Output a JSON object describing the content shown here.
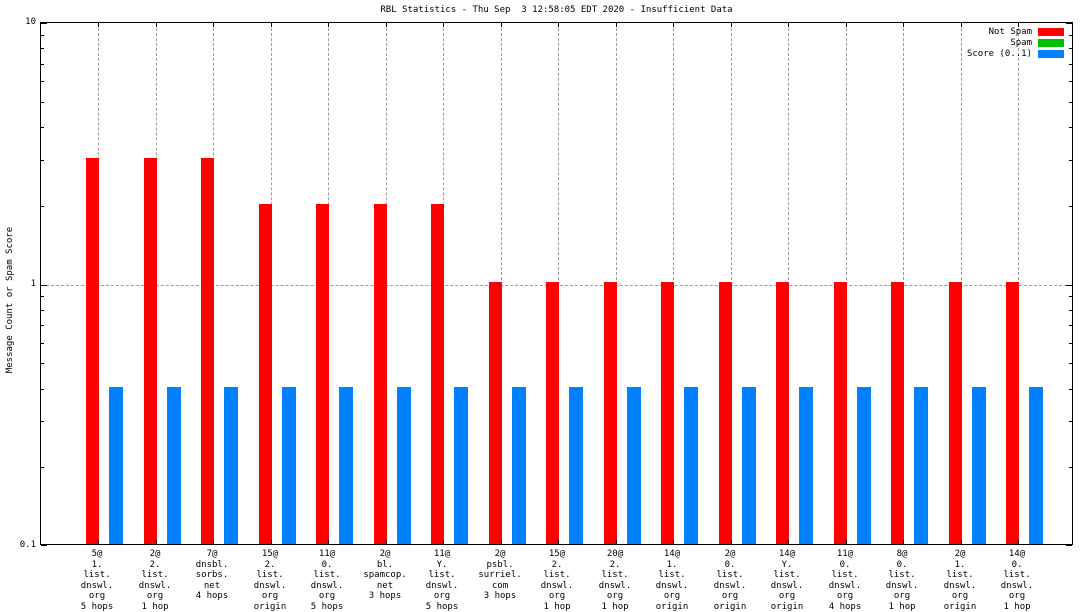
{
  "chart_data": {
    "type": "bar",
    "title": "RBL Statistics - Thu Sep  3 12:58:05 EDT 2020 - Insufficient Data",
    "ylabel": "Message Count or Spam Score",
    "yscale": "log",
    "ylim": [
      0.1,
      10
    ],
    "ytick_major": [
      0.1,
      1,
      10
    ],
    "ytick_major_labels": [
      "0.1",
      "1",
      "10"
    ],
    "grid_y_values": [
      1
    ],
    "grid_x": "at-category-ticks",
    "legend_position": "top-right-inside",
    "grid_color": "#9a9a9a",
    "categories": [
      [
        "5@",
        "1.",
        "list.",
        "dnswl.",
        "org",
        "5 hops"
      ],
      [
        "2@",
        "2.",
        "list.",
        "dnswl.",
        "org",
        "1 hop"
      ],
      [
        "7@",
        "dnsbl.",
        "sorbs.",
        "net",
        "4 hops"
      ],
      [
        "15@",
        "2.",
        "list.",
        "dnswl.",
        "org",
        "origin"
      ],
      [
        "11@",
        "0.",
        "list.",
        "dnswl.",
        "org",
        "5 hops"
      ],
      [
        "2@",
        "bl.",
        "spamcop.",
        "net",
        "3 hops"
      ],
      [
        "11@",
        "Y.",
        "list.",
        "dnswl.",
        "org",
        "5 hops"
      ],
      [
        "2@",
        "psbl.",
        "surriel.",
        "com",
        "3 hops"
      ],
      [
        "15@",
        "2.",
        "list.",
        "dnswl.",
        "org",
        "1 hop"
      ],
      [
        "20@",
        "2.",
        "list.",
        "dnswl.",
        "org",
        "1 hop"
      ],
      [
        "14@",
        "1.",
        "list.",
        "dnswl.",
        "org",
        "origin"
      ],
      [
        "2@",
        "0.",
        "list.",
        "dnswl.",
        "org",
        "origin"
      ],
      [
        "14@",
        "Y.",
        "list.",
        "dnswl.",
        "org",
        "origin"
      ],
      [
        "11@",
        "0.",
        "list.",
        "dnswl.",
        "org",
        "4 hops"
      ],
      [
        "8@",
        "0.",
        "list.",
        "dnswl.",
        "org",
        "1 hop"
      ],
      [
        "2@",
        "1.",
        "list.",
        "dnswl.",
        "org",
        "origin"
      ],
      [
        "14@",
        "0.",
        "list.",
        "dnswl.",
        "org",
        "1 hop"
      ]
    ],
    "series": [
      {
        "name": "Not Spam",
        "color": "#ff0000",
        "values": [
          3,
          3,
          3,
          2,
          2,
          2,
          2,
          1,
          1,
          1,
          1,
          1,
          1,
          1,
          1,
          1,
          1
        ]
      },
      {
        "name": "Spam",
        "color": "#00c000",
        "values": [
          0,
          0,
          0,
          0,
          0,
          0,
          0,
          0,
          0,
          0,
          0,
          0,
          0,
          0,
          0,
          0,
          0
        ]
      },
      {
        "name": "Score (0..1)",
        "color": "#0080ff",
        "values": [
          0.4,
          0.4,
          0.4,
          0.4,
          0.4,
          0.4,
          0.4,
          0.4,
          0.4,
          0.4,
          0.4,
          0.4,
          0.4,
          0.4,
          0.4,
          0.4,
          0.4
        ]
      }
    ]
  }
}
